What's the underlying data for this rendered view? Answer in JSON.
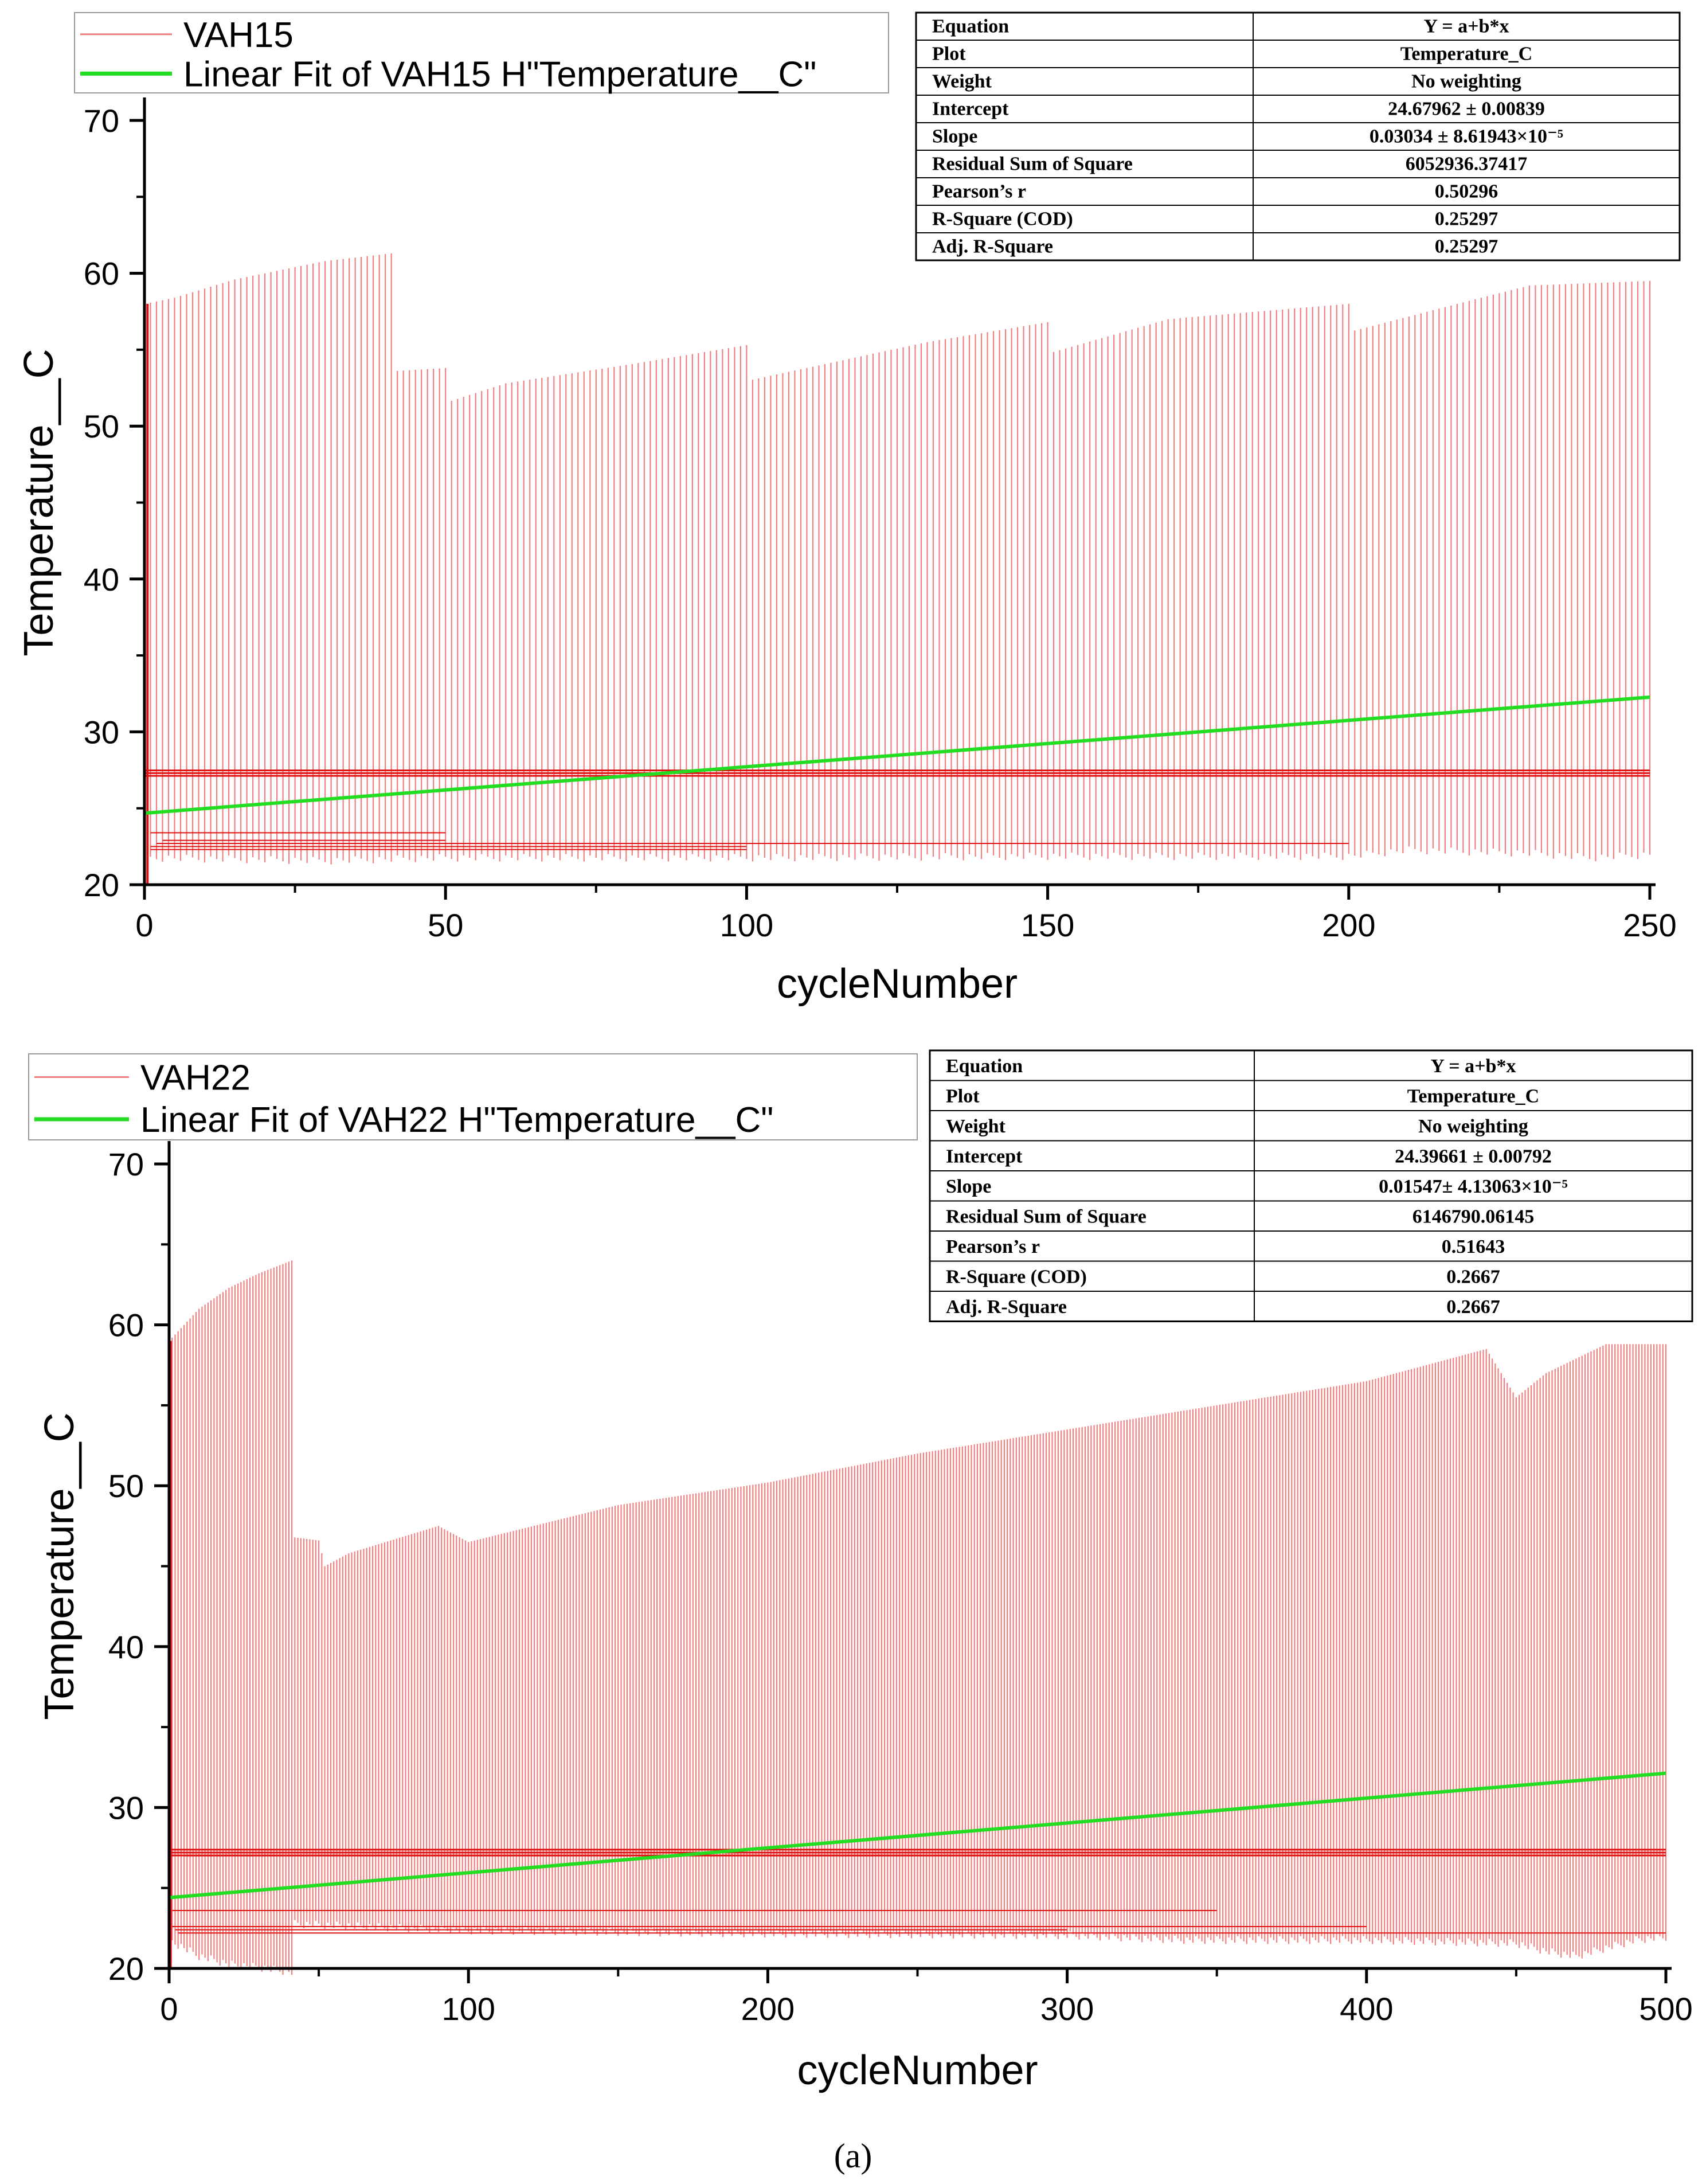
{
  "caption": "(a)",
  "caption_letter": "a",
  "colors": {
    "data": "#f08080",
    "data_dark": "#e01010",
    "fit": "#22dd22",
    "axis": "#000000",
    "table_border": "#000000"
  },
  "chart_data": [
    {
      "type": "line",
      "series": [
        {
          "name": "VAH15",
          "kind": "oscillating_raw",
          "color": "#f08080"
        },
        {
          "name": "Linear Fit of VAH15 H\"Temperature__C\"",
          "kind": "linear_fit",
          "color": "#22dd22",
          "x": [
            0,
            250
          ],
          "y": [
            24.68,
            32.27
          ]
        }
      ],
      "legend": [
        "VAH15",
        "Linear Fit of VAH15 H\"Temperature__C\""
      ],
      "xlabel": "cycleNumber",
      "ylabel": "Temperature__C",
      "xlim": [
        0,
        250
      ],
      "ylim": [
        20,
        70
      ],
      "xticks": [
        0,
        50,
        100,
        150,
        200,
        250
      ],
      "yticks": [
        20,
        30,
        40,
        50,
        60,
        70
      ],
      "xtick_labels": [
        "0",
        "50",
        "100",
        "150",
        "200",
        "250"
      ],
      "ytick_labels": [
        "20",
        "30",
        "40",
        "50",
        "60",
        "70"
      ],
      "cycle_count": 250,
      "envelope_max": {
        "x": [
          0,
          5,
          10,
          15,
          20,
          30,
          41,
          41.5,
          50,
          50.5,
          60,
          80,
          100,
          100.5,
          130,
          150,
          150.5,
          170,
          200,
          200.5,
          220,
          230,
          250
        ],
        "y": [
          58.0,
          58.4,
          59.0,
          59.6,
          60.0,
          60.8,
          61.3,
          53.6,
          53.8,
          51.6,
          52.8,
          54.0,
          55.3,
          53.0,
          55.5,
          56.8,
          54.8,
          57.0,
          58.0,
          56.2,
          58.2,
          59.2,
          59.5
        ]
      },
      "envelope_min": {
        "x": [
          0,
          30,
          50,
          100,
          150,
          200,
          210,
          230,
          240,
          250
        ],
        "y": [
          22.0,
          21.8,
          22.0,
          22.0,
          22.1,
          22.1,
          22.5,
          22.3,
          22.0,
          22.2
        ]
      },
      "baseline_level": 27.3,
      "horizontal_traces": [
        {
          "x": [
            1,
            50
          ],
          "y": 23.4
        },
        {
          "x": [
            3,
            50
          ],
          "y": 22.9
        },
        {
          "x": [
            1,
            100
          ],
          "y": 22.3
        },
        {
          "x": [
            2,
            200
          ],
          "y": 22.7
        },
        {
          "x": [
            1,
            100
          ],
          "y": 22.5
        }
      ],
      "stats_table": [
        [
          "Equation",
          "Y = a+b*x"
        ],
        [
          "Plot",
          "Temperature_C"
        ],
        [
          "Weight",
          "No weighting"
        ],
        [
          "Intercept",
          "24.67962 ± 0.00839"
        ],
        [
          "Slope",
          "0.03034 ± 8.61943×10⁻⁵"
        ],
        [
          "Residual Sum of Square",
          "6052936.37417"
        ],
        [
          "Pearson’s r",
          "0.50296"
        ],
        [
          "R-Square (COD)",
          "0.25297"
        ],
        [
          "Adj. R-Square",
          "0.25297"
        ]
      ]
    },
    {
      "type": "line",
      "series": [
        {
          "name": "VAH22",
          "kind": "oscillating_raw",
          "color": "#f08080"
        },
        {
          "name": "Linear Fit of VAH22 H\"Temperature__C\"",
          "kind": "linear_fit",
          "color": "#22dd22",
          "x": [
            0,
            500
          ],
          "y": [
            24.4,
            32.13
          ]
        }
      ],
      "legend": [
        "VAH22",
        "Linear Fit of VAH22 H\"Temperature__C\""
      ],
      "xlabel": "cycleNumber",
      "ylabel": "Temperature__C",
      "xlim": [
        0,
        500
      ],
      "ylim": [
        20,
        70
      ],
      "xticks": [
        0,
        100,
        200,
        300,
        400,
        500
      ],
      "yticks": [
        20,
        30,
        40,
        50,
        60,
        70
      ],
      "xtick_labels": [
        "0",
        "100",
        "200",
        "300",
        "400",
        "500"
      ],
      "ytick_labels": [
        "20",
        "30",
        "40",
        "50",
        "60",
        "70"
      ],
      "cycle_count": 500,
      "envelope_max": {
        "x": [
          0,
          10,
          20,
          30,
          41,
          41.5,
          50,
          52,
          60,
          90,
          100,
          150,
          200,
          250,
          300,
          350,
          400,
          440,
          450,
          460,
          480,
          500
        ],
        "y": [
          59.0,
          61.0,
          62.3,
          63.2,
          64.0,
          46.8,
          46.6,
          45.0,
          45.8,
          47.5,
          46.5,
          48.8,
          50.2,
          52.0,
          53.5,
          55.0,
          56.5,
          58.5,
          55.5,
          57.0,
          58.8,
          58.8
        ]
      },
      "envelope_min": {
        "x": [
          0,
          10,
          20,
          30,
          41,
          42,
          100,
          200,
          300,
          340,
          400,
          450,
          460,
          470,
          480,
          490,
          500
        ],
        "y": [
          22.0,
          21.0,
          20.5,
          20.3,
          20.0,
          23.0,
          22.6,
          22.4,
          22.3,
          22.0,
          22.0,
          21.8,
          21.3,
          21.0,
          21.5,
          22.0,
          22.2
        ]
      },
      "baseline_level": 27.2,
      "horizontal_traces": [
        {
          "x": [
            1,
            350
          ],
          "y": 23.6
        },
        {
          "x": [
            2,
            300
          ],
          "y": 22.4
        },
        {
          "x": [
            1,
            400
          ],
          "y": 22.6
        },
        {
          "x": [
            3,
            500
          ],
          "y": 22.2
        },
        {
          "x": [
            5,
            300
          ],
          "y": 27.0
        }
      ],
      "stats_table": [
        [
          "Equation",
          "Y = a+b*x"
        ],
        [
          "Plot",
          "Temperature_C"
        ],
        [
          "Weight",
          "No weighting"
        ],
        [
          "Intercept",
          "24.39661 ± 0.00792"
        ],
        [
          "Slope",
          "0.01547± 4.13063×10⁻⁵"
        ],
        [
          "Residual Sum of Square",
          "6146790.06145"
        ],
        [
          "Pearson’s r",
          "0.51643"
        ],
        [
          "R-Square (COD)",
          "0.2667"
        ],
        [
          "Adj. R-Square",
          "0.2667"
        ]
      ]
    }
  ]
}
